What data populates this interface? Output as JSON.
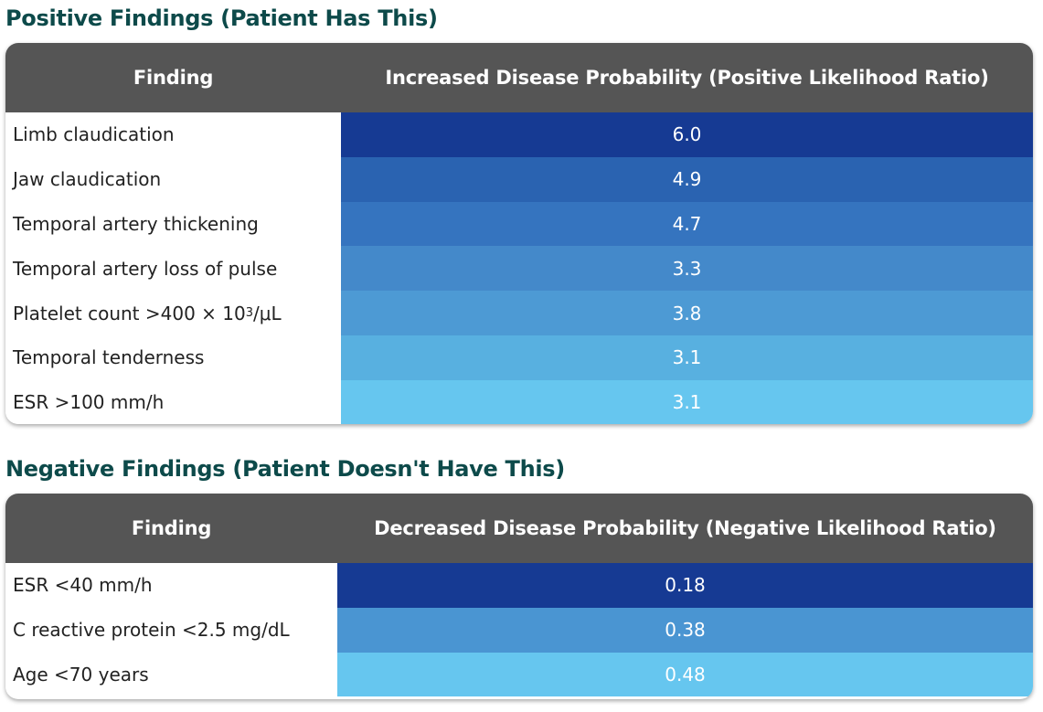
{
  "positive": {
    "title": "Positive Findings (Patient Has This)",
    "col_finding": "Finding",
    "col_value": "Increased Disease Probability (Positive Likelihood Ratio)",
    "rows": [
      {
        "finding": "Limb claudication",
        "value": "6.0",
        "color": "#163a93"
      },
      {
        "finding": "Jaw claudication",
        "value": "4.9",
        "color": "#2a63b1"
      },
      {
        "finding": "Temporal artery thickening",
        "value": "4.7",
        "color": "#3574bf"
      },
      {
        "finding": "Temporal artery loss of pulse",
        "value": "3.3",
        "color": "#4489ca"
      },
      {
        "finding": "Platelet count >400 × 10",
        "finding_sup": "3",
        "finding_suffix": "/μL",
        "value": "3.8",
        "color": "#4d9ad4"
      },
      {
        "finding": "Temporal tenderness",
        "value": "3.1",
        "color": "#58b0e0"
      },
      {
        "finding": "ESR >100 mm/h",
        "value": "3.1",
        "color": "#66c6ef"
      }
    ]
  },
  "negative": {
    "title": "Negative Findings (Patient Doesn't Have This)",
    "col_finding": "Finding",
    "col_value": "Decreased Disease Probability (Negative Likelihood Ratio)",
    "rows": [
      {
        "finding": "ESR <40 mm/h",
        "value": "0.18",
        "color": "#163a93"
      },
      {
        "finding": "C reactive protein <2.5 mg/dL",
        "value": "0.38",
        "color": "#4a95d2"
      },
      {
        "finding": "Age <70 years",
        "value": "0.48",
        "color": "#66c6ef"
      }
    ]
  },
  "colors": {
    "title": "#0d4a4a",
    "header_bg": "#555555"
  }
}
